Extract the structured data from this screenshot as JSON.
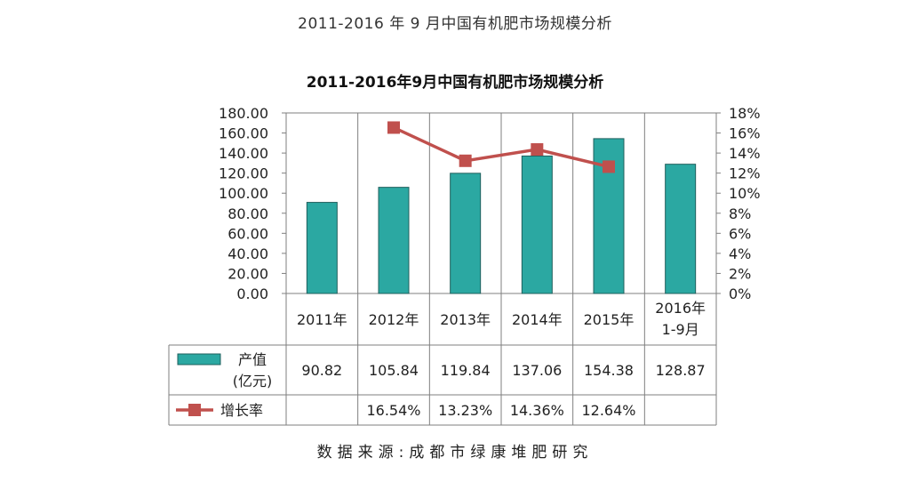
{
  "page_title": "2011-2016 年 9 月中国有机肥市场规模分析",
  "source": "数据来源:成都市绿康堆肥研究",
  "colors": {
    "bar": "#2ba8a2",
    "bar_stroke": "#1f5f5c",
    "line": "#c0504d",
    "grid": "#7f7f7f"
  },
  "chart_data": {
    "type": "bar",
    "title": "2011-2016年9月中国有机肥市场规模分析",
    "categories": [
      "2011年",
      "2012年",
      "2013年",
      "2014年",
      "2015年",
      "2016年\n1-9月"
    ],
    "ylim_left": [
      0,
      180
    ],
    "ylim_right": [
      0,
      18
    ],
    "left_ticks": [
      "0.00",
      "20.00",
      "40.00",
      "60.00",
      "80.00",
      "100.00",
      "120.00",
      "140.00",
      "160.00",
      "180.00"
    ],
    "right_ticks": [
      "0%",
      "2%",
      "4%",
      "6%",
      "8%",
      "10%",
      "12%",
      "14%",
      "16%",
      "18%"
    ],
    "grid": true,
    "series": [
      {
        "name": "产值\n(亿元)",
        "type": "bar",
        "axis": "left",
        "values": [
          90.82,
          105.84,
          119.84,
          137.06,
          154.38,
          128.87
        ],
        "labels": [
          "90.82",
          "105.84",
          "119.84",
          "137.06",
          "154.38",
          "128.87"
        ]
      },
      {
        "name": "增长率",
        "type": "line",
        "axis": "right",
        "values": [
          null,
          16.54,
          13.23,
          14.36,
          12.64,
          null
        ],
        "labels": [
          "",
          "16.54%",
          "13.23%",
          "14.36%",
          "12.64%",
          ""
        ]
      }
    ]
  }
}
